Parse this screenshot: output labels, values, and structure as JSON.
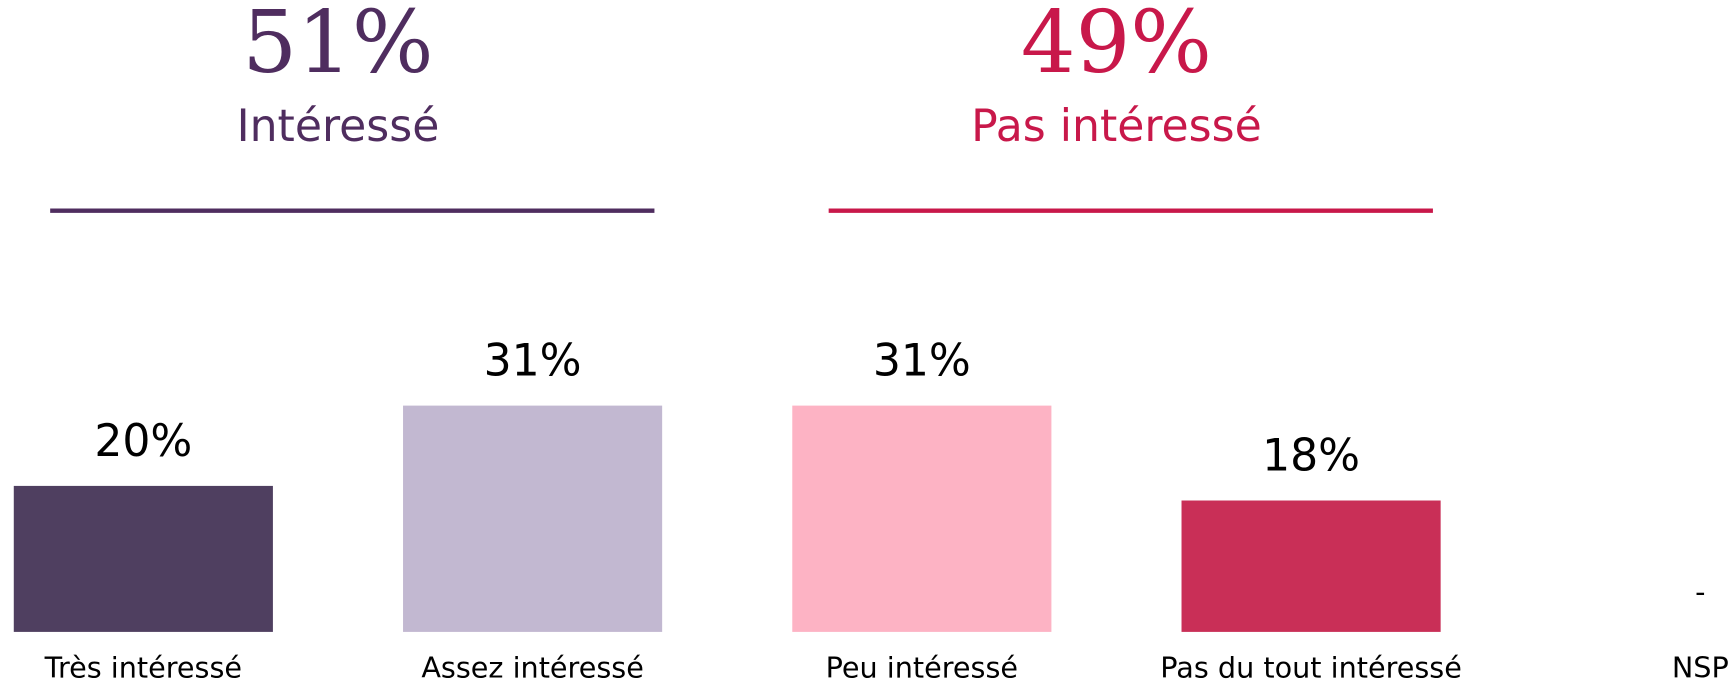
{
  "chart_data": {
    "type": "bar",
    "groups": [
      {
        "value": 51,
        "value_label": "51%",
        "label": "Intéressé",
        "color": "#4f2d5f"
      },
      {
        "value": 49,
        "value_label": "49%",
        "label": "Pas intéressé",
        "color": "#c8184a"
      }
    ],
    "categories": [
      "Très intéressé",
      "Assez intéressé",
      "Peu intéressé",
      "Pas du tout intéressé",
      "NSP"
    ],
    "values": [
      20,
      31,
      31,
      18,
      null
    ],
    "value_labels": [
      "20%",
      "31%",
      "31%",
      "18%",
      "-"
    ],
    "colors": [
      "#4f3f60",
      "#c2b8d1",
      "#fdb3c4",
      "#c92f57",
      "#000000"
    ]
  }
}
